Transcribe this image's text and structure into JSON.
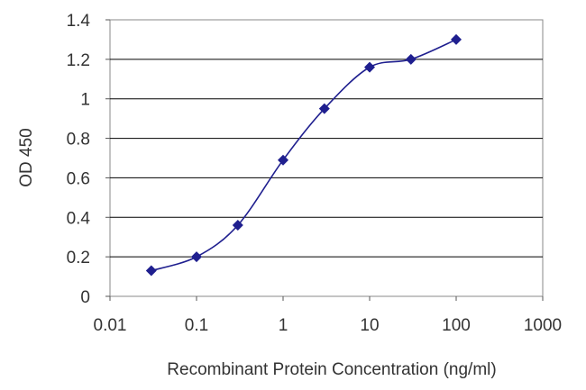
{
  "chart_data": {
    "type": "line",
    "title": "",
    "xlabel": "Recombinant Protein Concentration (ng/ml)",
    "ylabel": "OD 450",
    "x_scale": "log",
    "xlim": [
      0.01,
      1000
    ],
    "ylim": [
      0,
      1.4
    ],
    "x_ticks": [
      "0.01",
      "0.1",
      "1",
      "10",
      "100",
      "1000"
    ],
    "y_ticks": [
      "0",
      "0.2",
      "0.4",
      "0.6",
      "0.8",
      "1",
      "1.2",
      "1.4"
    ],
    "grid": "horizontal",
    "series": [
      {
        "x": [
          0.03,
          0.1,
          0.3,
          1,
          3,
          10,
          30,
          100
        ],
        "y": [
          0.13,
          0.2,
          0.36,
          0.69,
          0.95,
          1.16,
          1.2,
          1.3
        ],
        "color": "#1f1f8f",
        "marker": "diamond"
      }
    ]
  }
}
